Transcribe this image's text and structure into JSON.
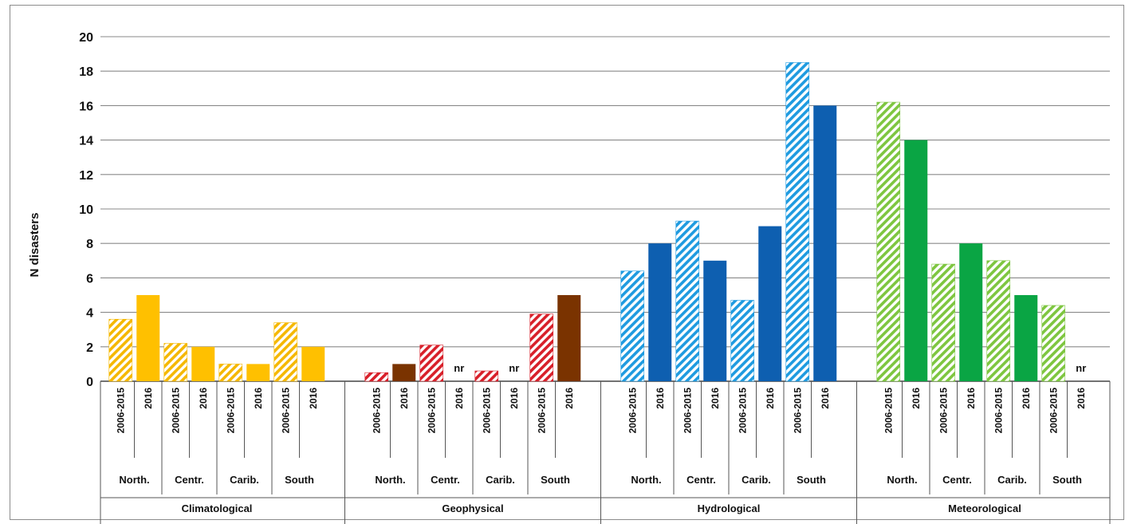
{
  "chart_data": {
    "type": "bar",
    "title": "",
    "ylabel": "N disasters",
    "xlabel": "",
    "ylim": [
      0,
      20
    ],
    "yticks": [
      0,
      2,
      4,
      6,
      8,
      10,
      12,
      14,
      16,
      18,
      20
    ],
    "grid": true,
    "legend": "none",
    "periods": [
      "2006-2015",
      "2016"
    ],
    "missing_label": "nr",
    "groups": [
      {
        "name": "Climatological",
        "colors": {
          "2006-2015": "#f5b800",
          "2016": "#ffc000"
        },
        "regions": [
          {
            "label": "North.",
            "values": [
              3.6,
              5.0
            ]
          },
          {
            "label": "Centr.",
            "values": [
              2.2,
              2.0
            ]
          },
          {
            "label": "Carib.",
            "values": [
              1.0,
              1.0
            ]
          },
          {
            "label": "South",
            "values": [
              3.4,
              2.0
            ]
          }
        ]
      },
      {
        "name": "Geophysical",
        "colors": {
          "2006-2015": "#d8202a",
          "2016": "#7a3300"
        },
        "regions": [
          {
            "label": "North.",
            "values": [
              0.5,
              1.0
            ]
          },
          {
            "label": "Centr.",
            "values": [
              2.1,
              null
            ]
          },
          {
            "label": "Carib.",
            "values": [
              0.6,
              null
            ]
          },
          {
            "label": "South",
            "values": [
              3.9,
              5.0
            ]
          }
        ]
      },
      {
        "name": "Hydrological",
        "colors": {
          "2006-2015": "#1f9be0",
          "2016": "#0e5fb0"
        },
        "regions": [
          {
            "label": "North.",
            "values": [
              6.4,
              8.0
            ]
          },
          {
            "label": "Centr.",
            "values": [
              9.3,
              7.0
            ]
          },
          {
            "label": "Carib.",
            "values": [
              4.7,
              9.0
            ]
          },
          {
            "label": "South",
            "values": [
              18.5,
              16.0
            ]
          }
        ]
      },
      {
        "name": "Meteorological",
        "colors": {
          "2006-2015": "#7ec640",
          "2016": "#0aa544"
        },
        "regions": [
          {
            "label": "North.",
            "values": [
              16.2,
              14.0
            ]
          },
          {
            "label": "Centr.",
            "values": [
              6.8,
              8.0
            ]
          },
          {
            "label": "Carib.",
            "values": [
              7.0,
              5.0
            ]
          },
          {
            "label": "South",
            "values": [
              4.4,
              null
            ]
          }
        ]
      }
    ]
  }
}
